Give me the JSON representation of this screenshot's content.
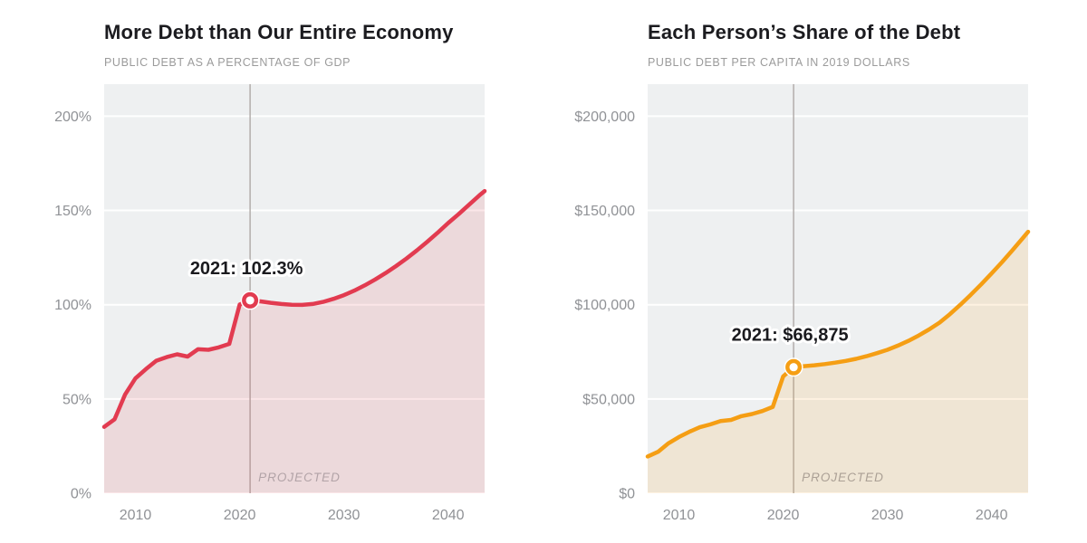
{
  "chart_data": [
    {
      "id": "debt-gdp",
      "type": "area",
      "title": "More Debt than Our Entire Economy",
      "subtitle": "PUBLIC DEBT AS A PERCENTAGE OF GDP",
      "line_color": "#e23b50",
      "fill_opacity": 0.13,
      "background_color": "#eef0f1",
      "gridline_color": "#ffffff",
      "tick_color": "#909296",
      "xlim": [
        2007,
        2043.5
      ],
      "ylim": [
        0,
        217
      ],
      "x_ticks": [
        {
          "value": 2010,
          "label": "2010"
        },
        {
          "value": 2020,
          "label": "2020"
        },
        {
          "value": 2030,
          "label": "2030"
        },
        {
          "value": 2040,
          "label": "2040"
        }
      ],
      "y_ticks": [
        {
          "value": 0,
          "label": "0%"
        },
        {
          "value": 50,
          "label": "50%"
        },
        {
          "value": 100,
          "label": "100%"
        },
        {
          "value": 150,
          "label": "150%"
        },
        {
          "value": 200,
          "label": "200%"
        }
      ],
      "x": [
        2007,
        2008,
        2009,
        2010,
        2011,
        2012,
        2013,
        2014,
        2015,
        2016,
        2017,
        2018,
        2019,
        2020,
        2021,
        2022,
        2023,
        2024,
        2025,
        2026,
        2027,
        2028,
        2029,
        2030,
        2031,
        2032,
        2033,
        2034,
        2035,
        2036,
        2037,
        2038,
        2039,
        2040,
        2041,
        2042,
        2043,
        2043.5
      ],
      "values": [
        35.2,
        39.2,
        52.3,
        60.9,
        65.8,
        70.3,
        72.2,
        73.7,
        72.5,
        76.4,
        76.1,
        77.4,
        79.2,
        100.1,
        102.3,
        101.8,
        101.0,
        100.4,
        100.0,
        99.9,
        100.4,
        101.5,
        103.1,
        105.1,
        107.5,
        110.3,
        113.4,
        116.8,
        120.5,
        124.5,
        128.8,
        133.4,
        138.2,
        143.3,
        148.0,
        153.0,
        158.0,
        160.3
      ],
      "annotation": {
        "text": "2021: 102.3%",
        "x": 2021,
        "y": 102.3,
        "color": "#1b1b1f",
        "halo_color": "#ffffff"
      },
      "projected": {
        "label": "PROJECTED",
        "x": 2021,
        "line_color": "#b3aeab",
        "label_color": "#b2a3a7"
      }
    },
    {
      "id": "debt-per-capita",
      "type": "area",
      "title": "Each Person’s Share of the Debt",
      "subtitle": "PUBLIC DEBT PER CAPITA IN 2019 DOLLARS",
      "line_color": "#f59e14",
      "fill_opacity": 0.13,
      "background_color": "#eef0f1",
      "gridline_color": "#ffffff",
      "tick_color": "#909296",
      "xlim": [
        2007,
        2043.5
      ],
      "ylim": [
        0,
        217000
      ],
      "x_ticks": [
        {
          "value": 2010,
          "label": "2010"
        },
        {
          "value": 2020,
          "label": "2020"
        },
        {
          "value": 2030,
          "label": "2030"
        },
        {
          "value": 2040,
          "label": "2040"
        }
      ],
      "y_ticks": [
        {
          "value": 0,
          "label": "$0"
        },
        {
          "value": 50000,
          "label": "$50,000"
        },
        {
          "value": 100000,
          "label": "$100,000"
        },
        {
          "value": 150000,
          "label": "$150,000"
        },
        {
          "value": 200000,
          "label": "$200,000"
        }
      ],
      "x": [
        2007,
        2008,
        2009,
        2010,
        2011,
        2012,
        2013,
        2014,
        2015,
        2016,
        2017,
        2018,
        2019,
        2020,
        2021,
        2022,
        2023,
        2024,
        2025,
        2026,
        2027,
        2028,
        2029,
        2030,
        2031,
        2032,
        2033,
        2034,
        2035,
        2036,
        2037,
        2038,
        2039,
        2040,
        2041,
        2042,
        2043,
        2043.5
      ],
      "values": [
        19500,
        22000,
        26500,
        29800,
        32600,
        35000,
        36500,
        38300,
        38900,
        40900,
        42000,
        43600,
        45800,
        62000,
        66875,
        67400,
        67900,
        68500,
        69300,
        70200,
        71300,
        72700,
        74300,
        76100,
        78300,
        80800,
        83700,
        86900,
        90500,
        95000,
        100000,
        105300,
        110800,
        116600,
        122600,
        128900,
        135400,
        138700
      ],
      "annotation": {
        "text": "2021: $66,875",
        "x": 2021,
        "y": 66875,
        "color": "#1b1b1f",
        "halo_color": "#ffffff"
      },
      "projected": {
        "label": "PROJECTED",
        "x": 2021,
        "line_color": "#b3aeab",
        "label_color": "#aba095"
      }
    }
  ]
}
